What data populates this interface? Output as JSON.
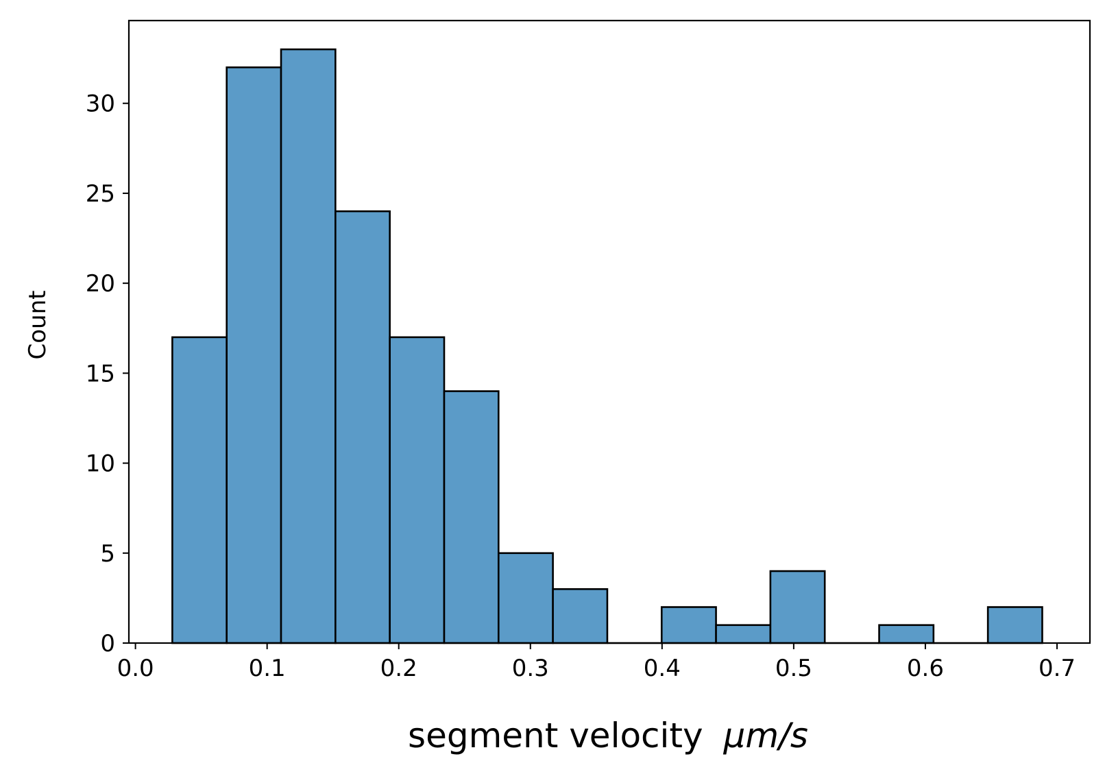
{
  "chart_data": {
    "type": "bar",
    "title": "",
    "xlabel": "segment velocity",
    "xlabel_unit": "μm/s",
    "ylabel": "Count",
    "xlim": [
      -0.005,
      0.725
    ],
    "ylim": [
      0,
      34.6
    ],
    "xticks": [
      0.0,
      0.1,
      0.2,
      0.3,
      0.4,
      0.5,
      0.6,
      0.7
    ],
    "xtick_labels": [
      "0.0",
      "0.1",
      "0.2",
      "0.3",
      "0.4",
      "0.5",
      "0.6",
      "0.7"
    ],
    "yticks": [
      0,
      5,
      10,
      15,
      20,
      25,
      30
    ],
    "ytick_labels": [
      "0",
      "5",
      "10",
      "15",
      "20",
      "25",
      "30"
    ],
    "bin_edges": [
      0.028,
      0.0693,
      0.1106,
      0.1519,
      0.1932,
      0.2345,
      0.2758,
      0.3171,
      0.3584,
      0.3997,
      0.441,
      0.4823,
      0.5236,
      0.5649,
      0.6062,
      0.6475,
      0.6888
    ],
    "values": [
      17,
      32,
      33,
      24,
      17,
      14,
      5,
      3,
      0,
      2,
      1,
      4,
      0,
      1,
      0,
      2
    ],
    "grid": false,
    "bar_color": "#5b9bc8",
    "edge_color": "#000000"
  }
}
